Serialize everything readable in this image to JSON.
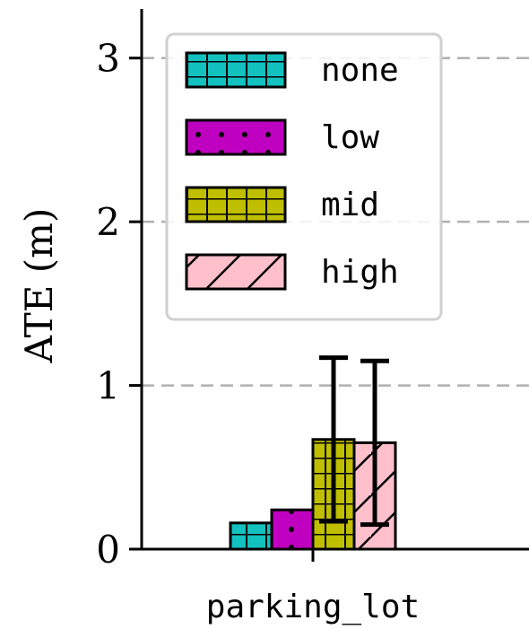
{
  "chart_data": {
    "type": "bar",
    "categories": [
      "parking_lot"
    ],
    "series": [
      {
        "name": "none",
        "values": [
          0.16
        ],
        "error": [
          0.0
        ],
        "color": "#13c1bf",
        "hatch": "grid"
      },
      {
        "name": "low",
        "values": [
          0.24
        ],
        "error": [
          0.0
        ],
        "color": "#c000c0",
        "hatch": "dots"
      },
      {
        "name": "mid",
        "values": [
          0.67
        ],
        "error": [
          0.5
        ],
        "color": "#bfbf00",
        "hatch": "grid"
      },
      {
        "name": "high",
        "values": [
          0.65
        ],
        "error": [
          0.5
        ],
        "color": "#ffc0cb",
        "hatch": "diagonal"
      }
    ],
    "ylabel": "ATE (m)",
    "xlabel": "",
    "ylim": [
      0,
      3.3
    ],
    "yticks": [
      0,
      1,
      2,
      3
    ],
    "grid": true,
    "legend": "top-left"
  }
}
